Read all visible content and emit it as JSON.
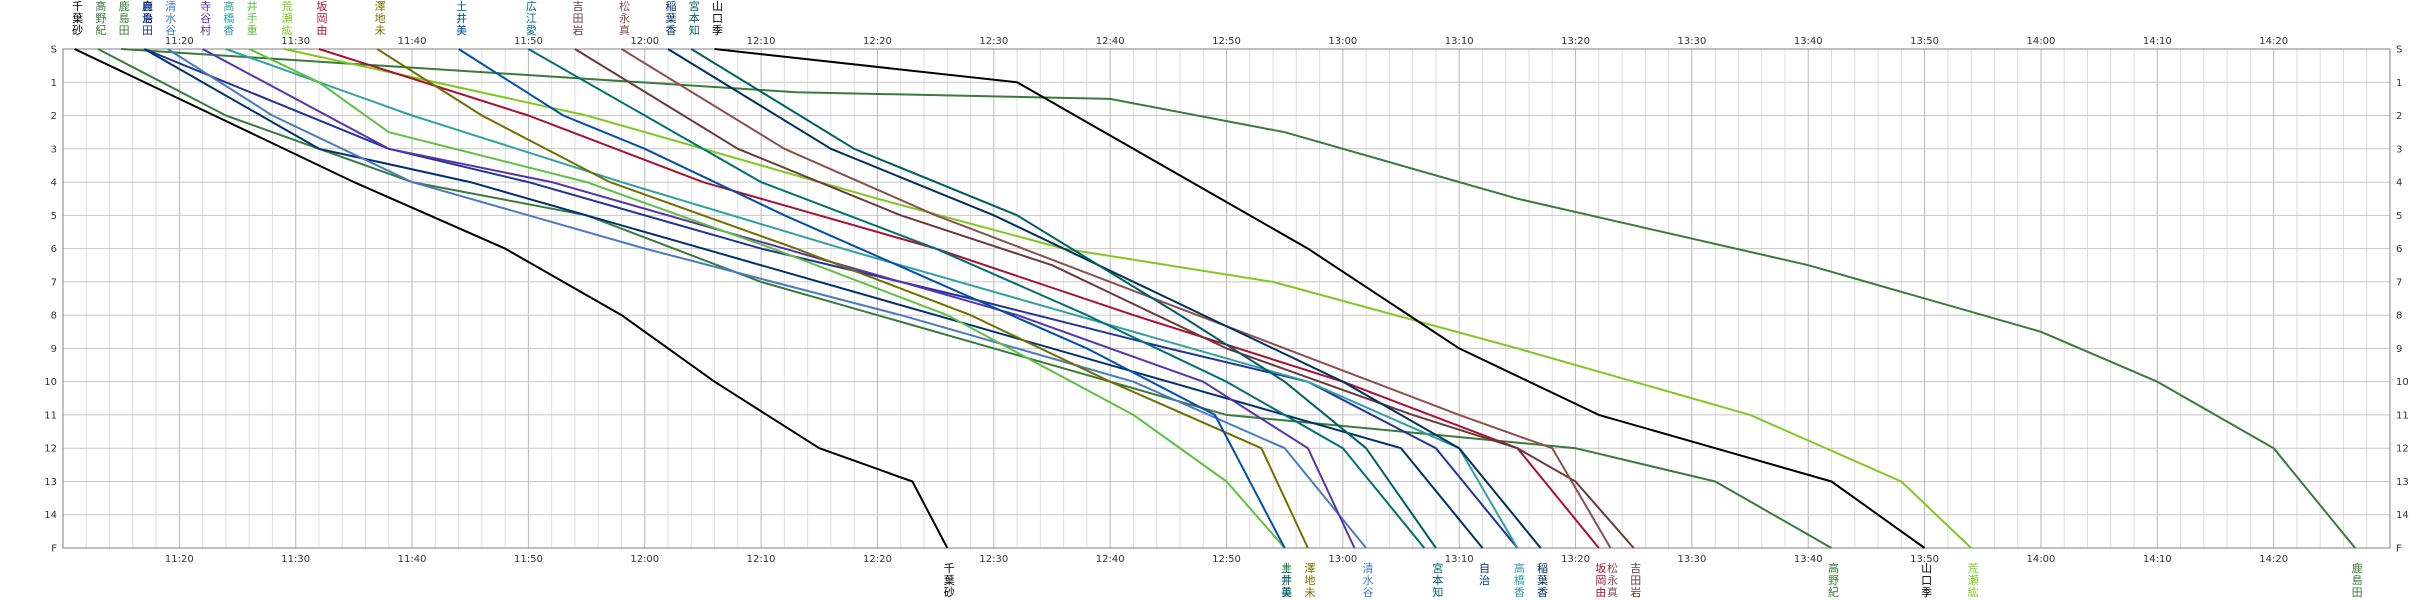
{
  "chart_data": {
    "type": "line",
    "x_unit": "minutes after midnight",
    "xlim": [
      670,
      870
    ],
    "ylim": [
      0,
      15
    ],
    "grid": true,
    "legend": "none",
    "x_ticks": [
      {
        "x": 680,
        "label": "11:20"
      },
      {
        "x": 690,
        "label": "11:30"
      },
      {
        "x": 700,
        "label": "11:40"
      },
      {
        "x": 710,
        "label": "11:50"
      },
      {
        "x": 720,
        "label": "12:00"
      },
      {
        "x": 730,
        "label": "12:10"
      },
      {
        "x": 740,
        "label": "12:20"
      },
      {
        "x": 750,
        "label": "12:30"
      },
      {
        "x": 760,
        "label": "12:40"
      },
      {
        "x": 770,
        "label": "12:50"
      },
      {
        "x": 780,
        "label": "13:00"
      },
      {
        "x": 790,
        "label": "13:10"
      },
      {
        "x": 800,
        "label": "13:20"
      },
      {
        "x": 810,
        "label": "13:30"
      },
      {
        "x": 820,
        "label": "13:40"
      },
      {
        "x": 830,
        "label": "13:50"
      },
      {
        "x": 840,
        "label": "14:00"
      },
      {
        "x": 850,
        "label": "14:10"
      },
      {
        "x": 860,
        "label": "14:20"
      }
    ],
    "y_ticks": [
      {
        "y": 0,
        "label": "S"
      },
      {
        "y": 1,
        "label": "1"
      },
      {
        "y": 2,
        "label": "2"
      },
      {
        "y": 3,
        "label": "3"
      },
      {
        "y": 4,
        "label": "4"
      },
      {
        "y": 5,
        "label": "5"
      },
      {
        "y": 6,
        "label": "6"
      },
      {
        "y": 7,
        "label": "7"
      },
      {
        "y": 8,
        "label": "8"
      },
      {
        "y": 9,
        "label": "9"
      },
      {
        "y": 10,
        "label": "10"
      },
      {
        "y": 11,
        "label": "11"
      },
      {
        "y": 12,
        "label": "12"
      },
      {
        "y": 13,
        "label": "13"
      },
      {
        "y": 14,
        "label": "14"
      },
      {
        "y": 15,
        "label": "F"
      }
    ],
    "series": [
      {
        "name": "千葉 砂",
        "color": "#000000",
        "start_label": true,
        "finish_label": true,
        "points": [
          [
            671,
            0
          ],
          [
            683,
            2
          ],
          [
            695,
            4
          ],
          [
            708,
            6
          ],
          [
            718,
            8
          ],
          [
            726,
            10
          ],
          [
            735,
            12
          ],
          [
            743,
            13
          ],
          [
            746,
            15
          ]
        ]
      },
      {
        "name": "高野 紀",
        "color": "#3a7a3a",
        "start_label": true,
        "finish_label": true,
        "points": [
          [
            673,
            0
          ],
          [
            684,
            2
          ],
          [
            700,
            4
          ],
          [
            715,
            5
          ],
          [
            730,
            7
          ],
          [
            750,
            9
          ],
          [
            770,
            11
          ],
          [
            800,
            12
          ],
          [
            812,
            13
          ],
          [
            822,
            15
          ]
        ]
      },
      {
        "name": "鹿島 田",
        "color": "#3a7a3a",
        "start_label": true,
        "finish_label": true,
        "points": [
          [
            675,
            0
          ],
          [
            733,
            1.3
          ],
          [
            760,
            1.5
          ],
          [
            775,
            2.5
          ],
          [
            795,
            4.5
          ],
          [
            820,
            6.5
          ],
          [
            840,
            8.5
          ],
          [
            850,
            10
          ],
          [
            860,
            12
          ],
          [
            867,
            15
          ]
        ]
      },
      {
        "name": "鹿島 田",
        "color": "#223399",
        "start_label": true,
        "finish_label": false,
        "points": [
          [
            677,
            0
          ],
          [
            698,
            3
          ],
          [
            710,
            4
          ],
          [
            730,
            6
          ],
          [
            748,
            7.5
          ],
          [
            765,
            9
          ],
          [
            777,
            10
          ],
          [
            788,
            12
          ],
          [
            795,
            15
          ]
        ]
      },
      {
        "name": "自 治",
        "color": "#003070",
        "start_label": true,
        "finish_label": true,
        "points": [
          [
            677,
            0
          ],
          [
            692,
            3
          ],
          [
            705,
            4
          ],
          [
            725,
            6
          ],
          [
            745,
            8
          ],
          [
            765,
            10
          ],
          [
            785,
            12
          ],
          [
            792,
            15
          ]
        ]
      },
      {
        "name": "清 水 谷",
        "color": "#4a7ac0",
        "start_label": true,
        "finish_label": true,
        "points": [
          [
            679,
            0
          ],
          [
            688,
            2
          ],
          [
            700,
            4
          ],
          [
            720,
            6
          ],
          [
            742,
            8
          ],
          [
            762,
            10
          ],
          [
            775,
            12
          ],
          [
            782,
            15
          ]
        ]
      },
      {
        "name": "寺 谷 村",
        "color": "#5535aa",
        "start_label": true,
        "finish_label": false,
        "points": [
          [
            682,
            0
          ],
          [
            698,
            3
          ],
          [
            712,
            4
          ],
          [
            732,
            6
          ],
          [
            752,
            8
          ],
          [
            768,
            10
          ],
          [
            777,
            12
          ],
          [
            781,
            15
          ]
        ]
      },
      {
        "name": "高 橋 香",
        "color": "#30a0a0",
        "start_label": true,
        "finish_label": true,
        "points": [
          [
            684,
            0
          ],
          [
            700,
            2
          ],
          [
            718,
            4
          ],
          [
            737,
            6
          ],
          [
            757,
            8
          ],
          [
            777,
            10
          ],
          [
            790,
            12
          ],
          [
            795,
            15
          ]
        ]
      },
      {
        "name": "井 手 重",
        "color": "#60c040",
        "start_label": true,
        "finish_label": true,
        "points": [
          [
            686,
            0
          ],
          [
            692,
            1
          ],
          [
            698,
            2.5
          ],
          [
            715,
            4
          ],
          [
            731,
            6
          ],
          [
            746,
            8
          ],
          [
            762,
            11
          ],
          [
            770,
            13
          ],
          [
            775,
            15
          ]
        ]
      },
      {
        "name": "荒 瀬 紘",
        "color": "#80c820",
        "start_label": true,
        "finish_label": true,
        "points": [
          [
            689,
            0
          ],
          [
            715,
            2
          ],
          [
            740,
            4.5
          ],
          [
            756,
            6
          ],
          [
            774,
            7
          ],
          [
            795,
            9
          ],
          [
            815,
            11
          ],
          [
            828,
            13
          ],
          [
            834,
            15
          ]
        ]
      },
      {
        "name": "坂 岡 由",
        "color": "#aa1033",
        "start_label": true,
        "finish_label": true,
        "points": [
          [
            692,
            0
          ],
          [
            710,
            2
          ],
          [
            725,
            4
          ],
          [
            745,
            6
          ],
          [
            762,
            8
          ],
          [
            780,
            10
          ],
          [
            795,
            12
          ],
          [
            802,
            15
          ]
        ]
      },
      {
        "name": "澤 地 未",
        "color": "#707000",
        "start_label": true,
        "finish_label": true,
        "points": [
          [
            697,
            0
          ],
          [
            706,
            2
          ],
          [
            717,
            4
          ],
          [
            733,
            6
          ],
          [
            748,
            8
          ],
          [
            760,
            10
          ],
          [
            773,
            12
          ],
          [
            777,
            15
          ]
        ]
      },
      {
        "name": "土 井 美",
        "color": "#0050aa",
        "start_label": true,
        "finish_label": true,
        "points": [
          [
            704,
            0
          ],
          [
            713,
            2
          ],
          [
            720,
            3
          ],
          [
            732,
            5
          ],
          [
            745,
            7
          ],
          [
            758,
            9
          ],
          [
            769,
            11
          ],
          [
            775,
            15
          ]
        ]
      },
      {
        "name": "広 江 愛",
        "color": "#007070",
        "start_label": true,
        "finish_label": false,
        "points": [
          [
            710,
            0
          ],
          [
            720,
            2
          ],
          [
            730,
            4
          ],
          [
            745,
            6
          ],
          [
            758,
            8
          ],
          [
            770,
            10
          ],
          [
            780,
            12
          ],
          [
            787,
            15
          ]
        ]
      },
      {
        "name": "吉 田 岩",
        "color": "#6a3a3a",
        "start_label": true,
        "finish_label": true,
        "points": [
          [
            714,
            0
          ],
          [
            728,
            3
          ],
          [
            742,
            5
          ],
          [
            755,
            6.5
          ],
          [
            770,
            9
          ],
          [
            786,
            11
          ],
          [
            795,
            12
          ],
          [
            800,
            13
          ],
          [
            805,
            15
          ]
        ]
      },
      {
        "name": "松 永 真",
        "color": "#8a5050",
        "start_label": true,
        "finish_label": true,
        "points": [
          [
            718,
            0
          ],
          [
            732,
            3
          ],
          [
            745,
            5
          ],
          [
            760,
            7
          ],
          [
            775,
            9
          ],
          [
            790,
            11
          ],
          [
            798,
            12
          ],
          [
            803,
            15
          ]
        ]
      },
      {
        "name": "稲 葉 香",
        "color": "#003060",
        "start_label": true,
        "finish_label": true,
        "points": [
          [
            722,
            0
          ],
          [
            736,
            3
          ],
          [
            750,
            5
          ],
          [
            768,
            8
          ],
          [
            780,
            10
          ],
          [
            790,
            12
          ],
          [
            797,
            15
          ]
        ]
      },
      {
        "name": "宮 本 知",
        "color": "#006060",
        "start_label": true,
        "finish_label": true,
        "points": [
          [
            724,
            0
          ],
          [
            738,
            3
          ],
          [
            752,
            5
          ],
          [
            766,
            8
          ],
          [
            775,
            10
          ],
          [
            782,
            12
          ],
          [
            788,
            15
          ]
        ]
      },
      {
        "name": "山 口 季",
        "color": "#000000",
        "start_label": true,
        "finish_label": true,
        "points": [
          [
            726,
            0
          ],
          [
            752,
            1
          ],
          [
            762,
            3
          ],
          [
            777,
            6
          ],
          [
            790,
            9
          ],
          [
            802,
            11
          ],
          [
            812,
            12
          ],
          [
            822,
            13
          ],
          [
            830,
            15
          ]
        ]
      }
    ]
  }
}
